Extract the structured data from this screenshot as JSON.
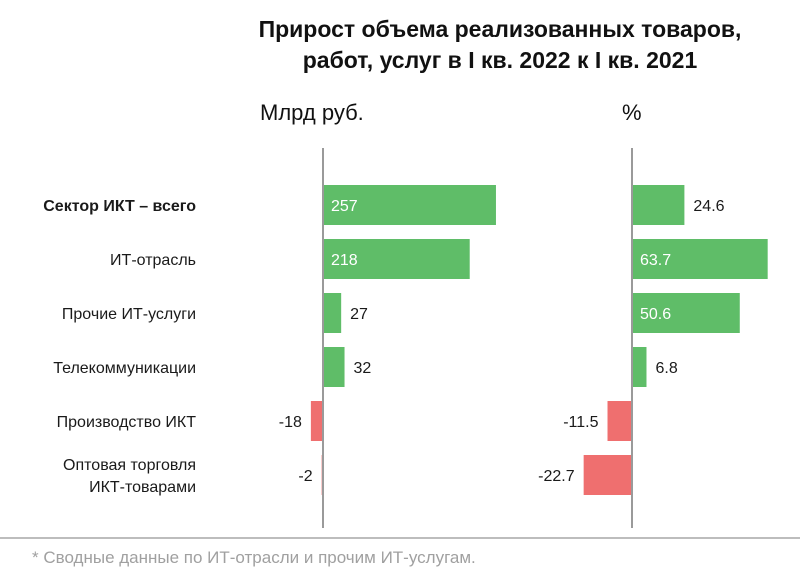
{
  "title_line1": "Прирост объема реализованных товаров,",
  "title_line2": "работ, услуг в I кв. 2022 к I кв. 2021",
  "footnote": "* Сводные данные по ИТ-отрасли и прочим ИТ-услугам.",
  "colors": {
    "positive": "#5fbd68",
    "negative": "#ef6f6f",
    "axis": "#9a9a9a",
    "divider": "#bdbdbd"
  },
  "chart_data": [
    {
      "type": "bar",
      "orientation": "horizontal",
      "xlabel": "Млрд руб.",
      "categories": [
        "Сектор ИКТ – всего",
        "ИТ-отрасль",
        "Прочие ИТ-услуги",
        "Телекоммуникации",
        "Производство ИКТ",
        "Оптовая торговля ИКТ-товарами"
      ],
      "values": [
        257,
        218,
        27,
        32,
        -18,
        -2
      ],
      "value_labels": [
        "257",
        "218",
        "27",
        "32",
        "-18",
        "-2"
      ],
      "bold_categories": [
        "Сектор ИКТ – всего"
      ],
      "grid": false
    },
    {
      "type": "bar",
      "orientation": "horizontal",
      "xlabel": "%",
      "categories": [
        "Сектор ИКТ – всего",
        "ИТ-отрасль",
        "Прочие ИТ-услуги",
        "Телекоммуникации",
        "Производство ИКТ",
        "Оптовая торговля ИКТ-товарами"
      ],
      "values": [
        24.6,
        63.7,
        50.6,
        6.8,
        -11.5,
        -22.7
      ],
      "value_labels": [
        "24.6",
        "63.7",
        "50.6",
        "6.8",
        "-11.5",
        "-22.7"
      ],
      "grid": false
    }
  ]
}
